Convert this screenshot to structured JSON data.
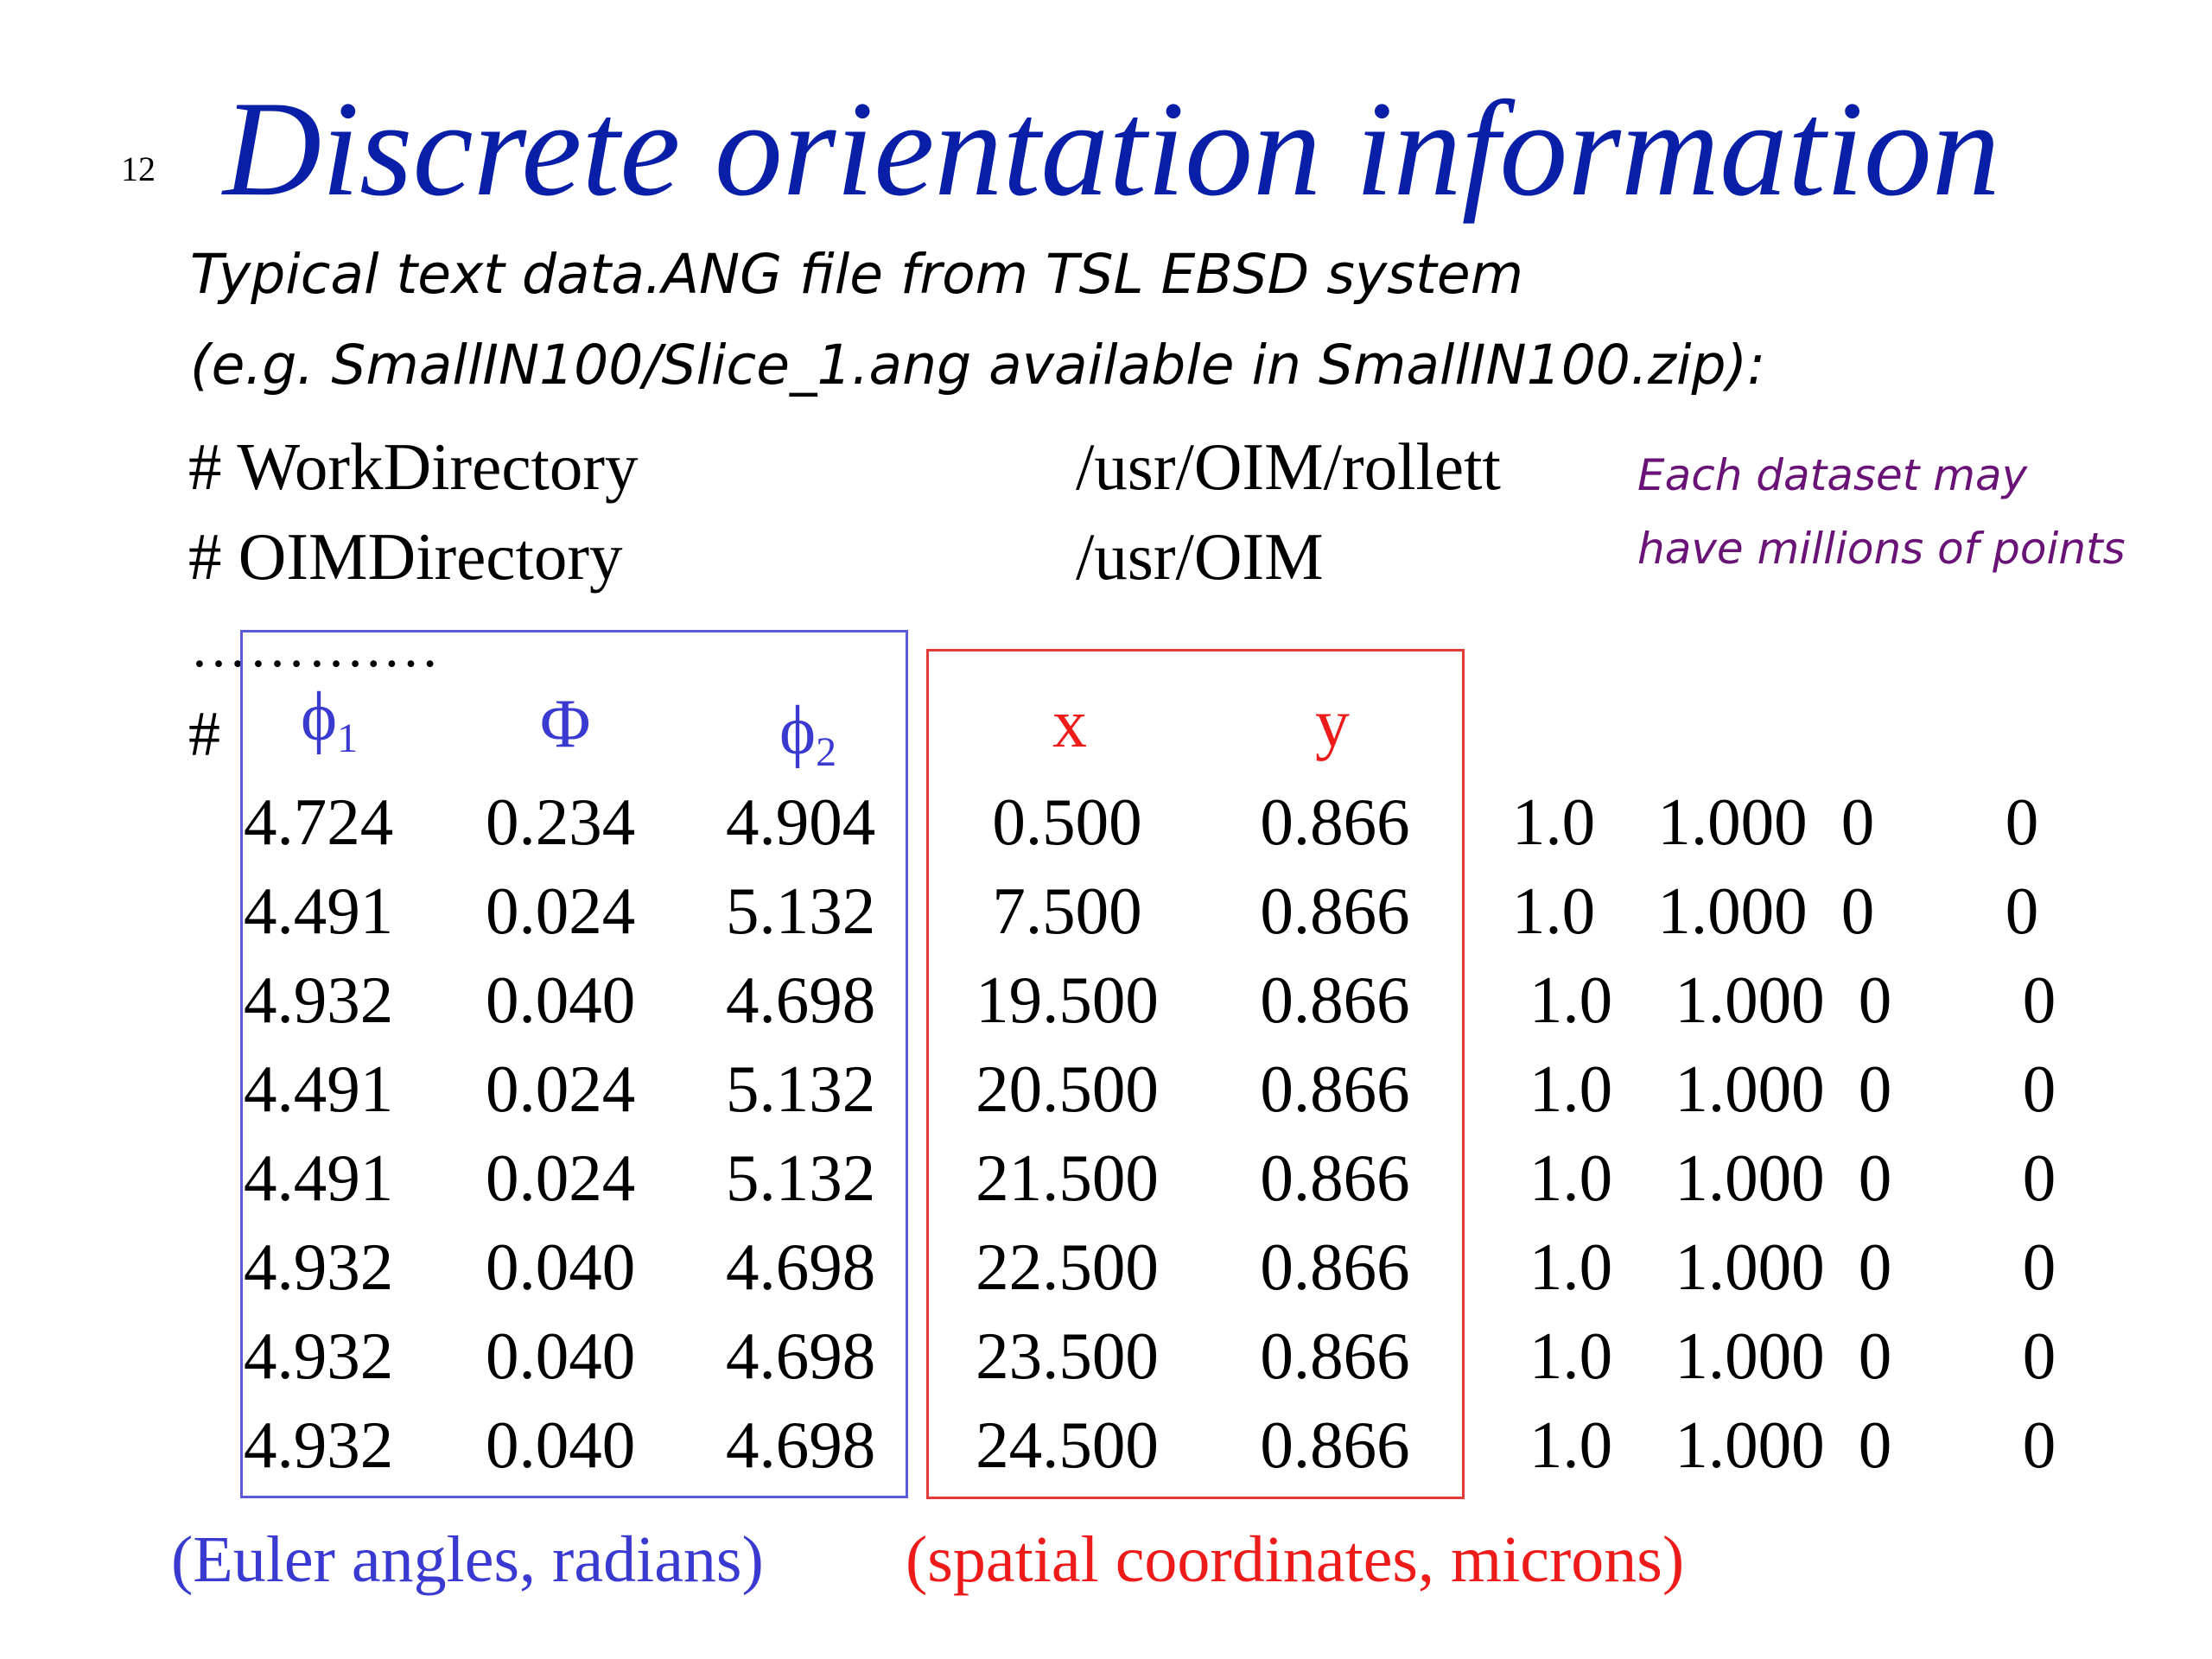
{
  "slide": {
    "number": "12",
    "title": "Discrete orientation information"
  },
  "intro": {
    "line1": "Typical text data.ANG file from TSL EBSD system",
    "line2": "(e.g. SmallIN100/Slice_1.ang available in SmallIN100.zip):"
  },
  "header_lines": [
    {
      "key": "# WorkDirectory",
      "value": "/usr/OIM/rollett"
    },
    {
      "key": "# OIMDirectory",
      "value": "/usr/OIM"
    }
  ],
  "note": {
    "line1": "Each dataset may",
    "line2": "have millions of points"
  },
  "ellipsis": "……….…",
  "table": {
    "hash": "#",
    "headers": {
      "phi1": {
        "symbol": "ϕ",
        "sub": "1"
      },
      "Phi": {
        "symbol": "Φ"
      },
      "phi2": {
        "symbol": "ϕ",
        "sub": "2"
      },
      "x": "x",
      "y": "y"
    },
    "rows": [
      [
        "4.724",
        "0.234",
        "4.904",
        "0.500",
        "0.866",
        "1.0",
        "1.000",
        "0",
        "0"
      ],
      [
        "4.491",
        "0.024",
        "5.132",
        "7.500",
        "0.866",
        "1.0",
        "1.000",
        "0",
        "0"
      ],
      [
        "4.932",
        "0.040",
        "4.698",
        "19.500",
        "0.866",
        "1.0",
        "1.000",
        "0",
        "0"
      ],
      [
        "4.491",
        "0.024",
        "5.132",
        "20.500",
        "0.866",
        "1.0",
        "1.000",
        "0",
        "0"
      ],
      [
        "4.491",
        "0.024",
        "5.132",
        "21.500",
        "0.866",
        "1.0",
        "1.000",
        "0",
        "0"
      ],
      [
        "4.932",
        "0.040",
        "4.698",
        "22.500",
        "0.866",
        "1.0",
        "1.000",
        "0",
        "0"
      ],
      [
        "4.932",
        "0.040",
        "4.698",
        "23.500",
        "0.866",
        "1.0",
        "1.000",
        "0",
        "0"
      ],
      [
        "4.932",
        "0.040",
        "4.698",
        "24.500",
        "0.866",
        "1.0",
        "1.000",
        "0",
        "0"
      ]
    ]
  },
  "captions": {
    "euler": "(Euler angles, radians)",
    "spatial": "(spatial coordinates, microns)"
  },
  "colors": {
    "title": "#0a1fa8",
    "euler": "#3a3ad1",
    "spatial": "#ee1b1b",
    "note": "#6a1377"
  }
}
